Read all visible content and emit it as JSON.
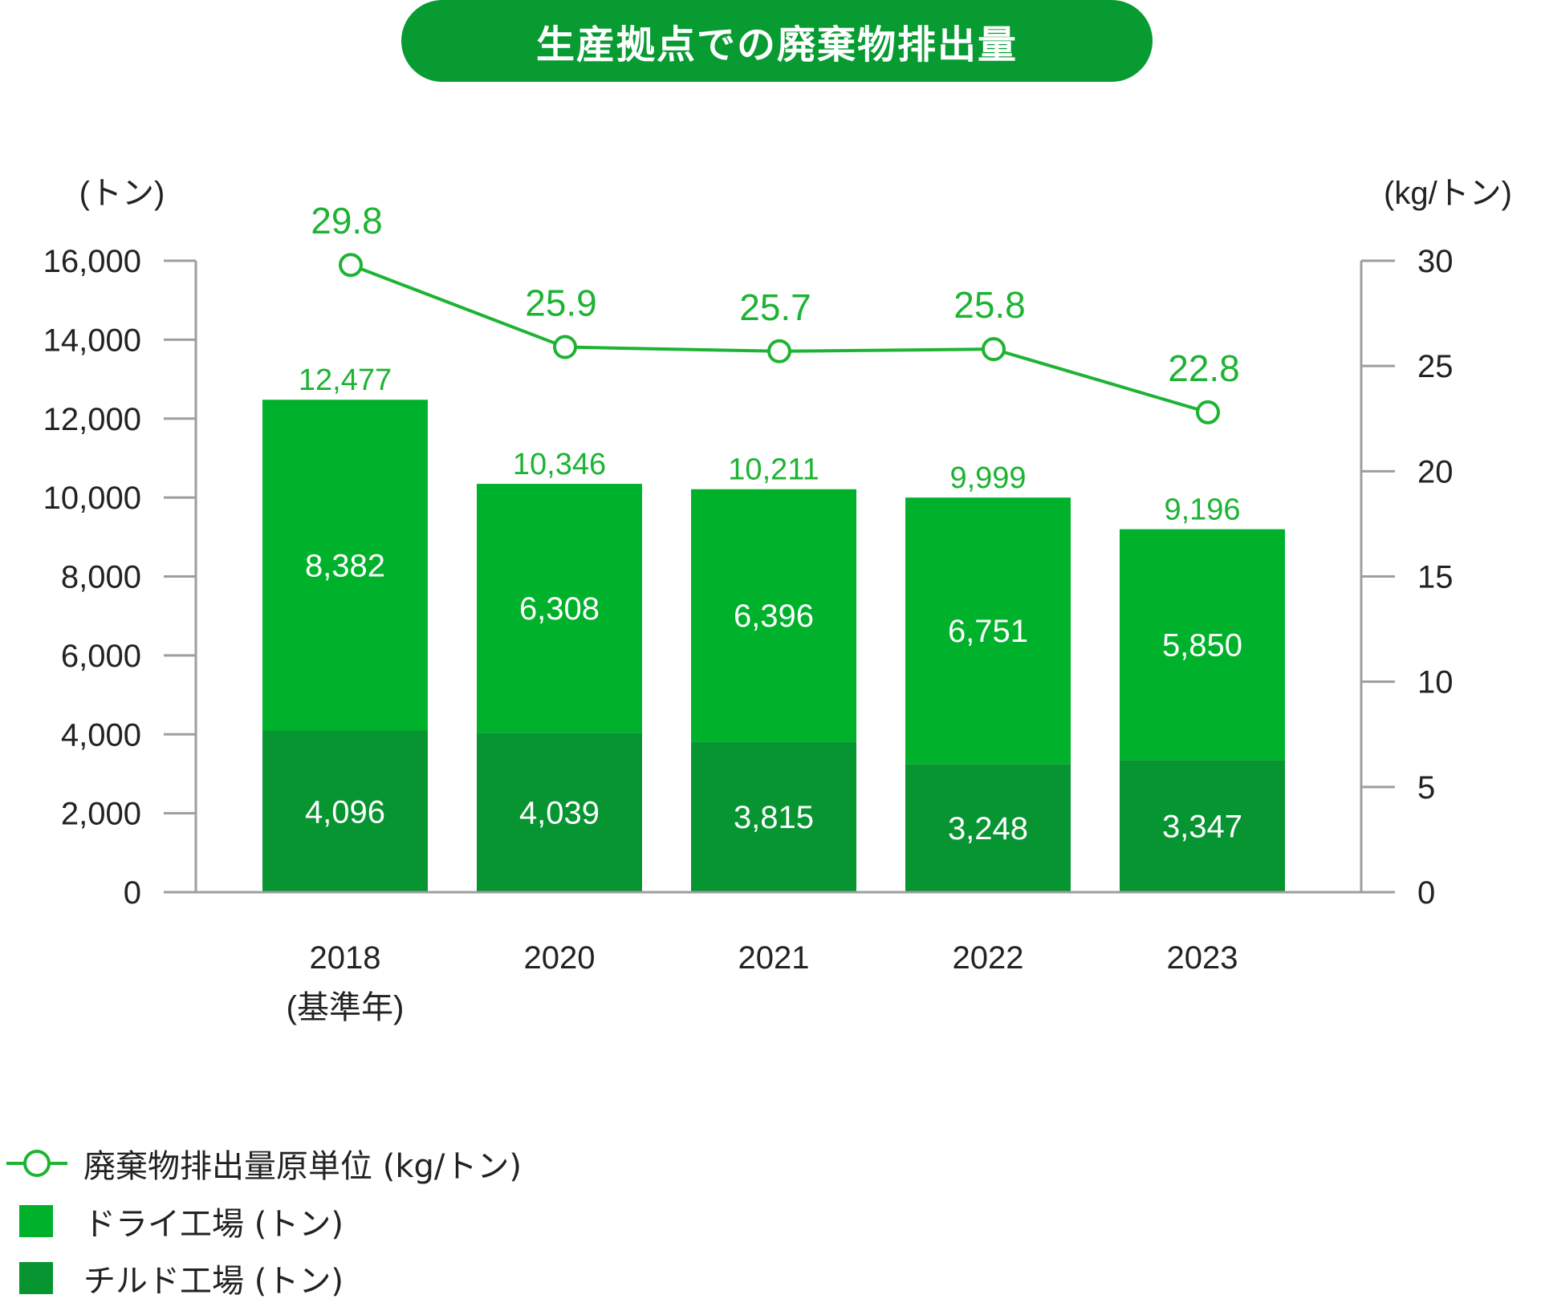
{
  "title": "生産拠点での廃棄物排出量",
  "colors": {
    "title_bg": "#079b32",
    "dry": "#00b22b",
    "chilled": "#079532",
    "line": "#1db333",
    "axis": "#9e9e9e"
  },
  "chart_data": {
    "type": "bar",
    "stacked": true,
    "categories": [
      "2018\n(基準年)",
      "2020",
      "2021",
      "2022",
      "2023"
    ],
    "y_left": {
      "label": "(トン)",
      "ylim": [
        0,
        16000
      ],
      "ticks": [
        "0",
        "2,000",
        "4,000",
        "6,000",
        "8,000",
        "10,000",
        "12,000",
        "14,000",
        "16,000"
      ]
    },
    "y_right": {
      "label": "(kg/トン)",
      "ylim": [
        0,
        30
      ],
      "ticks": [
        "0",
        "5",
        "10",
        "15",
        "20",
        "25",
        "30"
      ]
    },
    "series": [
      {
        "name": "チルド工場 (トン)",
        "type": "bar",
        "axis": "left",
        "values": [
          4096,
          4039,
          3815,
          3248,
          3347
        ],
        "labels": [
          "4,096",
          "4,039",
          "3,815",
          "3,248",
          "3,347"
        ]
      },
      {
        "name": "ドライ工場 (トン)",
        "type": "bar",
        "axis": "left",
        "values": [
          8382,
          6308,
          6396,
          6751,
          5850
        ],
        "labels": [
          "8,382",
          "6,308",
          "6,396",
          "6,751",
          "5,850"
        ]
      },
      {
        "name": "廃棄物排出量原単位 (kg/トン)",
        "type": "line",
        "axis": "right",
        "values": [
          29.8,
          25.9,
          25.7,
          25.8,
          22.8
        ],
        "labels": [
          "29.8",
          "25.9",
          "25.7",
          "25.8",
          "22.8"
        ]
      }
    ],
    "totals": {
      "values": [
        12477,
        10346,
        10211,
        9999,
        9196
      ],
      "labels": [
        "12,477",
        "10,346",
        "10,211",
        "9,999",
        "9,196"
      ]
    },
    "legend": [
      {
        "label": "廃棄物排出量原単位 (kg/トン)",
        "marker": "line-circle"
      },
      {
        "label": "ドライ工場 (トン)",
        "marker": "square"
      },
      {
        "label": "チルド工場 (トン)",
        "marker": "square"
      }
    ],
    "grid": false,
    "legend_position": "bottom-left"
  }
}
